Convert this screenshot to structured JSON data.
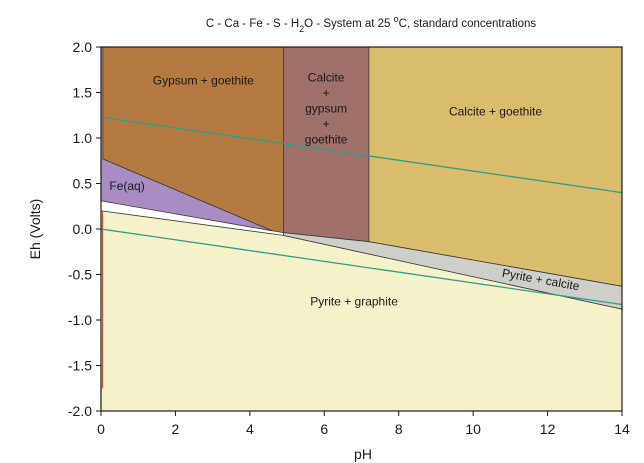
{
  "chart_data": {
    "type": "area",
    "title": {
      "parts": [
        {
          "text": "C - Ca - Fe - S - H",
          "baseline": "normal"
        },
        {
          "text": "2",
          "baseline": "sub"
        },
        {
          "text": "O - System at 25 ",
          "baseline": "normal"
        },
        {
          "text": "o",
          "baseline": "super"
        },
        {
          "text": "C, standard concentrations",
          "baseline": "normal"
        }
      ]
    },
    "xlabel": "pH",
    "ylabel": "Eh (Volts)",
    "xlim": [
      0,
      14
    ],
    "ylim": [
      -2.0,
      2.0
    ],
    "x_ticks": [
      {
        "value": 0,
        "label": "0"
      },
      {
        "value": 2,
        "label": "2"
      },
      {
        "value": 4,
        "label": "4"
      },
      {
        "value": 6,
        "label": "6"
      },
      {
        "value": 8,
        "label": "8"
      },
      {
        "value": 10,
        "label": "10"
      },
      {
        "value": 12,
        "label": "12"
      },
      {
        "value": 14,
        "label": "14"
      }
    ],
    "y_ticks": [
      {
        "value": 2.0,
        "label": "2.0"
      },
      {
        "value": 1.5,
        "label": "1.5"
      },
      {
        "value": 1.0,
        "label": "1.0"
      },
      {
        "value": 0.5,
        "label": "0.5"
      },
      {
        "value": 0.0,
        "label": "0.0"
      },
      {
        "value": -0.5,
        "label": "-0.5"
      },
      {
        "value": -1.0,
        "label": "-1.0"
      },
      {
        "value": -1.5,
        "label": "-1.5"
      },
      {
        "value": -2.0,
        "label": "-2.0"
      }
    ],
    "grid": false,
    "regions": [
      {
        "id": "pyrite-graphite",
        "label": "Pyrite + graphite",
        "color": "#f6f2c9",
        "polygon": [
          [
            0,
            -2.0
          ],
          [
            14,
            -2.0
          ],
          [
            14,
            -0.88
          ],
          [
            4.9,
            -0.07
          ],
          [
            0,
            0.2
          ]
        ],
        "label_at": [
          6.8,
          -0.84
        ]
      },
      {
        "id": "fe-aq",
        "label": "Fe(aq)",
        "color": "#a98cc2",
        "polygon": [
          [
            0,
            2.0
          ],
          [
            0.05,
            2.0
          ],
          [
            0.05,
            0.77
          ],
          [
            4.6,
            -0.02
          ],
          [
            0,
            0.31
          ]
        ],
        "label_at": [
          0.7,
          0.43
        ]
      },
      {
        "id": "gypsum-goethite",
        "label": "Gypsum + goethite",
        "color": "#b57a41",
        "polygon": [
          [
            0.05,
            2.0
          ],
          [
            4.9,
            2.0
          ],
          [
            4.9,
            -0.04
          ],
          [
            4.6,
            -0.02
          ],
          [
            0.05,
            0.77
          ]
        ],
        "label_at": [
          2.75,
          1.59
        ]
      },
      {
        "id": "calcite-gypsum-goethite",
        "lines": [
          "Calcite",
          "+",
          "gypsum",
          "+",
          "goethite"
        ],
        "color": "#a0706a",
        "polygon": [
          [
            4.9,
            2.0
          ],
          [
            7.2,
            2.0
          ],
          [
            7.2,
            -0.14
          ],
          [
            4.9,
            -0.04
          ]
        ],
        "label_at": [
          6.05,
          1.62
        ]
      },
      {
        "id": "calcite-goethite",
        "label": "Calcite + goethite",
        "color": "#d9bc6c",
        "polygon": [
          [
            7.2,
            2.0
          ],
          [
            14,
            2.0
          ],
          [
            14,
            -0.63
          ],
          [
            7.2,
            -0.14
          ]
        ],
        "label_at": [
          10.6,
          1.25
        ]
      },
      {
        "id": "pyrite-calcite",
        "label": "Pyrite + calcite",
        "color": "#cfcfca",
        "polygon": [
          [
            4.9,
            -0.04
          ],
          [
            7.2,
            -0.14
          ],
          [
            14,
            -0.63
          ],
          [
            14,
            -0.88
          ],
          [
            4.9,
            -0.07
          ]
        ],
        "label_at": [
          11.8,
          -0.6
        ],
        "label_rotate": 10
      }
    ],
    "series": [
      {
        "kind": "water-stability-upper",
        "color": "#2f9d8c",
        "x": [
          0,
          14
        ],
        "y": [
          1.23,
          0.4
        ]
      },
      {
        "kind": "water-stability-lower",
        "color": "#2f9d8c",
        "x": [
          0,
          14
        ],
        "y": [
          0.0,
          -0.83
        ]
      }
    ]
  }
}
